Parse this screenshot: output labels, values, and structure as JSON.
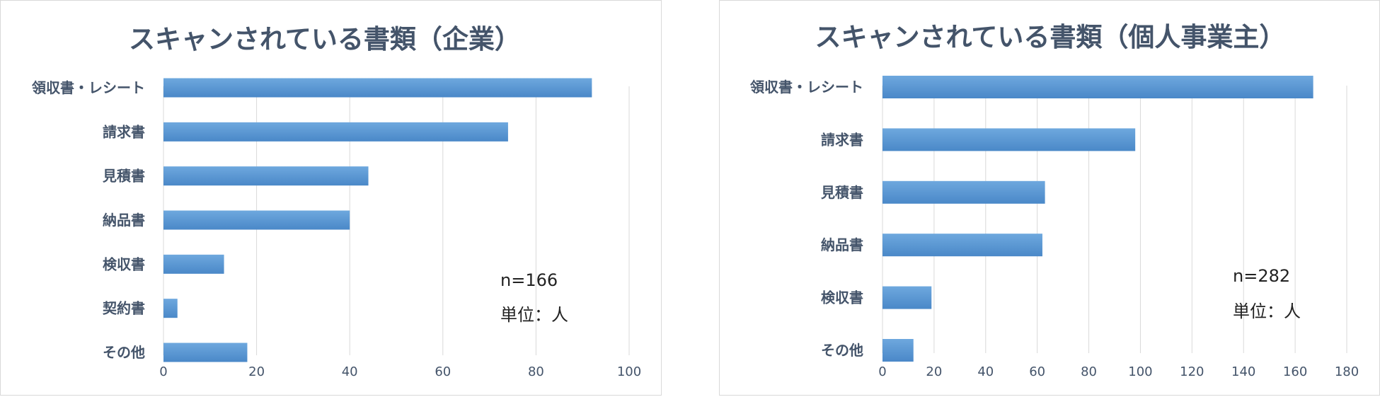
{
  "colors": {
    "bar": "#5b9bd5",
    "bar_dark": "#4a88c8",
    "grid": "#d9d9d9",
    "text": "#44546a"
  },
  "chart_data": [
    {
      "type": "bar",
      "orientation": "horizontal",
      "title": "スキャンされている書類（企業）",
      "categories": [
        "領収書・レシート",
        "請求書",
        "見積書",
        "納品書",
        "検収書",
        "契約書",
        "その他"
      ],
      "values": [
        92,
        74,
        44,
        40,
        13,
        3,
        18
      ],
      "xlim": [
        0,
        100
      ],
      "xticks": [
        0,
        20,
        40,
        60,
        80,
        100
      ],
      "grid": true,
      "notes": [
        "n=166",
        "単位：人"
      ]
    },
    {
      "type": "bar",
      "orientation": "horizontal",
      "title": "スキャンされている書類（個人事業主）",
      "categories": [
        "領収書・レシート",
        "請求書",
        "見積書",
        "納品書",
        "検収書",
        "その他"
      ],
      "values": [
        167,
        98,
        63,
        62,
        19,
        12
      ],
      "xlim": [
        0,
        180
      ],
      "xticks": [
        0,
        20,
        40,
        60,
        80,
        100,
        120,
        140,
        160,
        180
      ],
      "grid": true,
      "notes": [
        "n=282",
        "単位：人"
      ]
    }
  ]
}
